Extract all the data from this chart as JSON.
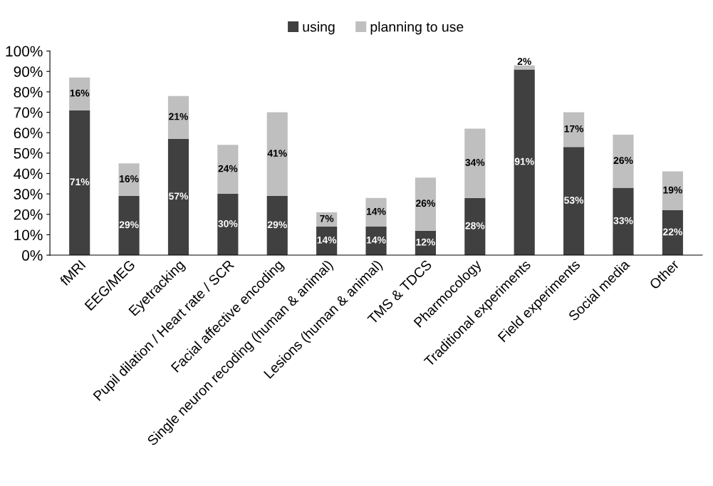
{
  "chart_data": {
    "type": "bar",
    "stacked": true,
    "categories": [
      "fMRI",
      "EEG/MEG",
      "Eyetracking",
      "Pupil dilation / Heart rate / SCR",
      "Facial affective encoding",
      "Single neuron recoding (human & animal)",
      "Lesions (human & animal)",
      "TMS & TDCS",
      "Pharmocology",
      "Traditional experiments",
      "Field experiments",
      "Social media",
      "Other"
    ],
    "series": [
      {
        "name": "using",
        "color": "#404040",
        "values": [
          71,
          29,
          57,
          30,
          29,
          14,
          14,
          12,
          28,
          91,
          53,
          33,
          22
        ],
        "value_labels": [
          "71%",
          "29%",
          "57%",
          "30%",
          "29%",
          "14%",
          "14%",
          "12%",
          "28%",
          "91%",
          "53%",
          "33%",
          "22%"
        ]
      },
      {
        "name": "planning to use",
        "color": "#bfbfbf",
        "values": [
          16,
          16,
          21,
          24,
          41,
          7,
          14,
          26,
          34,
          2,
          17,
          26,
          19
        ],
        "value_labels": [
          "16%",
          "16%",
          "21%",
          "24%",
          "41%",
          "7%",
          "14%",
          "26%",
          "34%",
          "2%",
          "17%",
          "26%",
          "19%"
        ]
      }
    ],
    "ylim": [
      0,
      100
    ],
    "yticks": [
      {
        "value": 0,
        "label": "0%"
      },
      {
        "value": 10,
        "label": "10%"
      },
      {
        "value": 20,
        "label": "20%"
      },
      {
        "value": 30,
        "label": "30%"
      },
      {
        "value": 40,
        "label": "40%"
      },
      {
        "value": 50,
        "label": "50%"
      },
      {
        "value": 60,
        "label": "60%"
      },
      {
        "value": 70,
        "label": "70%"
      },
      {
        "value": 80,
        "label": "80%"
      },
      {
        "value": 90,
        "label": "90%"
      },
      {
        "value": 100,
        "label": "100%"
      }
    ],
    "grid": false,
    "legend": "top"
  }
}
